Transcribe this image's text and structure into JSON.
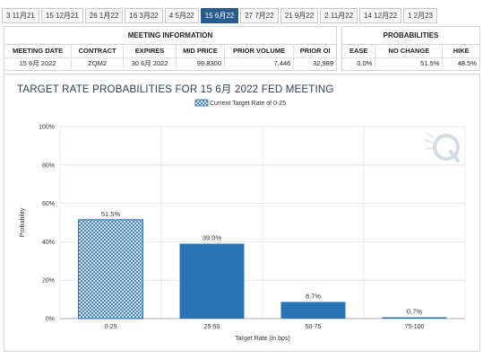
{
  "tabs": [
    {
      "label": "3 11月21",
      "active": false
    },
    {
      "label": "15 12月21",
      "active": false
    },
    {
      "label": "26 1月22",
      "active": false
    },
    {
      "label": "16 3月22",
      "active": false
    },
    {
      "label": "4 5月22",
      "active": false
    },
    {
      "label": "15 6月22",
      "active": true
    },
    {
      "label": "27 7月22",
      "active": false
    },
    {
      "label": "21 9月22",
      "active": false
    },
    {
      "label": "2 11月22",
      "active": false
    },
    {
      "label": "14 12月22",
      "active": false
    },
    {
      "label": "1 2月23",
      "active": false
    }
  ],
  "meeting_info": {
    "title": "MEETING INFORMATION",
    "headers": [
      "MEETING DATE",
      "CONTRACT",
      "EXPIRES",
      "MID PRICE",
      "PRIOR VOLUME",
      "PRIOR OI"
    ],
    "row": [
      "15 6月 2022",
      "ZQM2",
      "30 6月 2022",
      "99.8300",
      "7,446",
      "32,989"
    ]
  },
  "probabilities": {
    "title": "PROBABILITIES",
    "headers": [
      "EASE",
      "NO CHANGE",
      "HIKE"
    ],
    "row": [
      "0.0%",
      "51.5%",
      "48.5%"
    ]
  },
  "chart_title": "TARGET RATE PROBABILITIES FOR 15 6月 2022 FED MEETING",
  "chart_data": {
    "type": "bar",
    "title": "TARGET RATE PROBABILITIES FOR 15 6月 2022 FED MEETING",
    "categories": [
      "0-25",
      "25-50",
      "50-75",
      "75-100"
    ],
    "values": [
      51.5,
      39.0,
      8.7,
      0.7
    ],
    "value_labels": [
      "51.5%",
      "39.0%",
      "8.7%",
      "0.7%"
    ],
    "highlight_index": 0,
    "xlabel": "Target Rate (in bps)",
    "ylabel": "Probability",
    "ylim": [
      0,
      100
    ],
    "yticks": [
      0,
      20,
      40,
      60,
      80,
      100
    ],
    "ytick_labels": [
      "0%",
      "20%",
      "40%",
      "60%",
      "80%",
      "100%"
    ],
    "legend": {
      "label": "Current Target Rate of 0-25",
      "position": "top-center"
    },
    "grid": true,
    "bar_color": "#2a73b5",
    "highlight_color": "#2a73b5"
  }
}
